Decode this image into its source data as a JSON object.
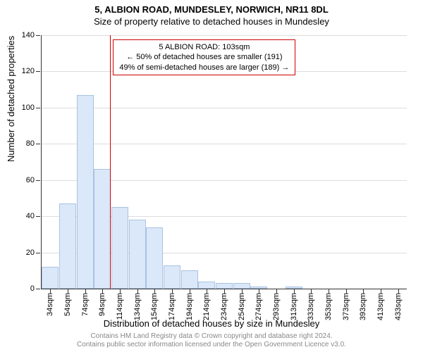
{
  "title": "5, ALBION ROAD, MUNDESLEY, NORWICH, NR11 8DL",
  "subtitle": "Size of property relative to detached houses in Mundesley",
  "ylabel": "Number of detached properties",
  "xlabel": "Distribution of detached houses by size in Mundesley",
  "footnote1": "Contains HM Land Registry data © Crown copyright and database right 2024.",
  "footnote2": "Contains public sector information licensed under the Open Government Licence v3.0.",
  "chart": {
    "type": "bar",
    "ylim": [
      0,
      140
    ],
    "ytick_step": 20,
    "bar_fill": "#dbe8f9",
    "bar_stroke": "#a8c2e0",
    "grid_color": "#dddddd",
    "refline_color": "#cc0000",
    "refline_x": 103,
    "categories": [
      "34sqm",
      "54sqm",
      "74sqm",
      "94sqm",
      "114sqm",
      "134sqm",
      "154sqm",
      "174sqm",
      "194sqm",
      "214sqm",
      "234sqm",
      "254sqm",
      "274sqm",
      "293sqm",
      "313sqm",
      "333sqm",
      "353sqm",
      "373sqm",
      "393sqm",
      "413sqm",
      "433sqm"
    ],
    "values": [
      12,
      47,
      107,
      66,
      45,
      38,
      34,
      13,
      10,
      4,
      3,
      3,
      1,
      0,
      1,
      0,
      0,
      0,
      0,
      0,
      0
    ]
  },
  "annotation": {
    "line1": "5 ALBION ROAD: 103sqm",
    "line2": "← 50% of detached houses are smaller (191)",
    "line3": "49% of semi-detached houses are larger (189) →"
  }
}
